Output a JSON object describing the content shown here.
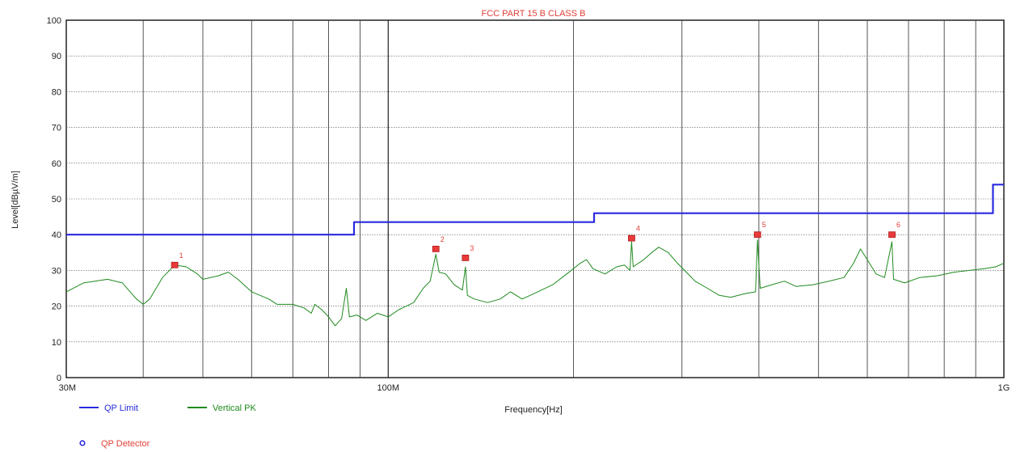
{
  "chart_data": {
    "type": "line",
    "title": "FCC PART 15 B CLASS B",
    "xlabel": "Frequency[Hz]",
    "ylabel": "Level[dBµV/m]",
    "x_scale": "log",
    "xlim": [
      30000000,
      1000000000
    ],
    "ylim": [
      0,
      100
    ],
    "grid": true,
    "x_tick_labels": [
      {
        "value": 30000000,
        "label": "30M"
      },
      {
        "value": 100000000,
        "label": "100M"
      },
      {
        "value": 1000000000,
        "label": "1G"
      }
    ],
    "y_ticks": [
      0,
      10,
      20,
      30,
      40,
      50,
      60,
      70,
      80,
      90,
      100
    ],
    "series": [
      {
        "name": "QP Limit",
        "color": "#2a2ae0",
        "step": true,
        "points": [
          [
            30000000,
            40
          ],
          [
            88000000,
            40
          ],
          [
            88000000,
            43.5
          ],
          [
            216000000,
            43.5
          ],
          [
            216000000,
            46
          ],
          [
            960000000,
            46
          ],
          [
            960000000,
            54
          ],
          [
            1000000000,
            54
          ]
        ]
      },
      {
        "name": "Vertical PK",
        "color": "#1f8a1f",
        "points": [
          [
            30000000,
            24
          ],
          [
            32000000,
            26.5
          ],
          [
            35000000,
            27.5
          ],
          [
            37000000,
            26.5
          ],
          [
            39000000,
            22
          ],
          [
            40000000,
            20.5
          ],
          [
            41000000,
            22
          ],
          [
            43000000,
            28
          ],
          [
            45000000,
            31.5
          ],
          [
            47000000,
            31
          ],
          [
            49000000,
            29
          ],
          [
            50000000,
            27.5
          ],
          [
            53000000,
            28.5
          ],
          [
            55000000,
            29.5
          ],
          [
            57000000,
            27.5
          ],
          [
            60000000,
            24
          ],
          [
            64000000,
            22
          ],
          [
            66000000,
            20.5
          ],
          [
            70000000,
            20.5
          ],
          [
            73000000,
            19.5
          ],
          [
            75000000,
            18
          ],
          [
            76000000,
            20.5
          ],
          [
            78000000,
            19
          ],
          [
            80000000,
            17
          ],
          [
            82000000,
            14.5
          ],
          [
            84000000,
            16.5
          ],
          [
            85500000,
            25
          ],
          [
            86500000,
            17
          ],
          [
            89000000,
            17.5
          ],
          [
            92000000,
            16
          ],
          [
            96000000,
            18
          ],
          [
            100000000,
            17
          ],
          [
            104000000,
            19
          ],
          [
            110000000,
            21
          ],
          [
            114000000,
            25
          ],
          [
            117000000,
            27
          ],
          [
            119500000,
            34.5
          ],
          [
            121000000,
            29.5
          ],
          [
            124000000,
            29
          ],
          [
            128000000,
            26
          ],
          [
            132000000,
            24.5
          ],
          [
            133500000,
            31
          ],
          [
            134500000,
            23
          ],
          [
            138000000,
            22
          ],
          [
            145000000,
            21
          ],
          [
            152000000,
            22
          ],
          [
            158000000,
            24
          ],
          [
            165000000,
            22
          ],
          [
            175000000,
            24
          ],
          [
            185000000,
            26
          ],
          [
            195000000,
            29
          ],
          [
            205000000,
            32
          ],
          [
            210000000,
            33
          ],
          [
            215000000,
            30.5
          ],
          [
            225000000,
            29
          ],
          [
            235000000,
            31
          ],
          [
            242000000,
            31.5
          ],
          [
            247000000,
            30
          ],
          [
            248500000,
            38
          ],
          [
            250000000,
            31
          ],
          [
            260000000,
            33
          ],
          [
            268000000,
            35
          ],
          [
            275000000,
            36.5
          ],
          [
            285000000,
            35
          ],
          [
            295000000,
            32
          ],
          [
            305000000,
            29.5
          ],
          [
            315000000,
            27
          ],
          [
            330000000,
            25
          ],
          [
            345000000,
            23
          ],
          [
            360000000,
            22.5
          ],
          [
            380000000,
            23.5
          ],
          [
            395000000,
            24
          ],
          [
            398000000,
            38.5
          ],
          [
            402000000,
            25
          ],
          [
            420000000,
            26
          ],
          [
            440000000,
            27
          ],
          [
            460000000,
            25.5
          ],
          [
            490000000,
            26
          ],
          [
            520000000,
            27
          ],
          [
            550000000,
            28
          ],
          [
            570000000,
            32
          ],
          [
            585000000,
            36
          ],
          [
            600000000,
            33
          ],
          [
            620000000,
            29
          ],
          [
            640000000,
            28
          ],
          [
            658000000,
            38
          ],
          [
            662000000,
            27.5
          ],
          [
            690000000,
            26.5
          ],
          [
            730000000,
            28
          ],
          [
            780000000,
            28.5
          ],
          [
            830000000,
            29.5
          ],
          [
            880000000,
            30
          ],
          [
            930000000,
            30.5
          ],
          [
            970000000,
            31
          ],
          [
            1000000000,
            32
          ]
        ]
      }
    ],
    "markers": [
      {
        "label": "1",
        "x": 45000000,
        "y": 31.5
      },
      {
        "label": "2",
        "x": 119500000,
        "y": 36
      },
      {
        "label": "3",
        "x": 133500000,
        "y": 33.5
      },
      {
        "label": "4",
        "x": 248500000,
        "y": 39
      },
      {
        "label": "5",
        "x": 398000000,
        "y": 40
      },
      {
        "label": "6",
        "x": 658000000,
        "y": 40
      }
    ],
    "legend": {
      "position": "bottom-left",
      "items": [
        {
          "label": "QP Limit",
          "color": "#2a2ae0",
          "kind": "line"
        },
        {
          "label": "Vertical PK",
          "color": "#1f8a1f",
          "kind": "line"
        },
        {
          "label": "QP Detector",
          "color": "#2a2ae0",
          "text_color": "#e0403a",
          "kind": "circle"
        }
      ]
    }
  }
}
